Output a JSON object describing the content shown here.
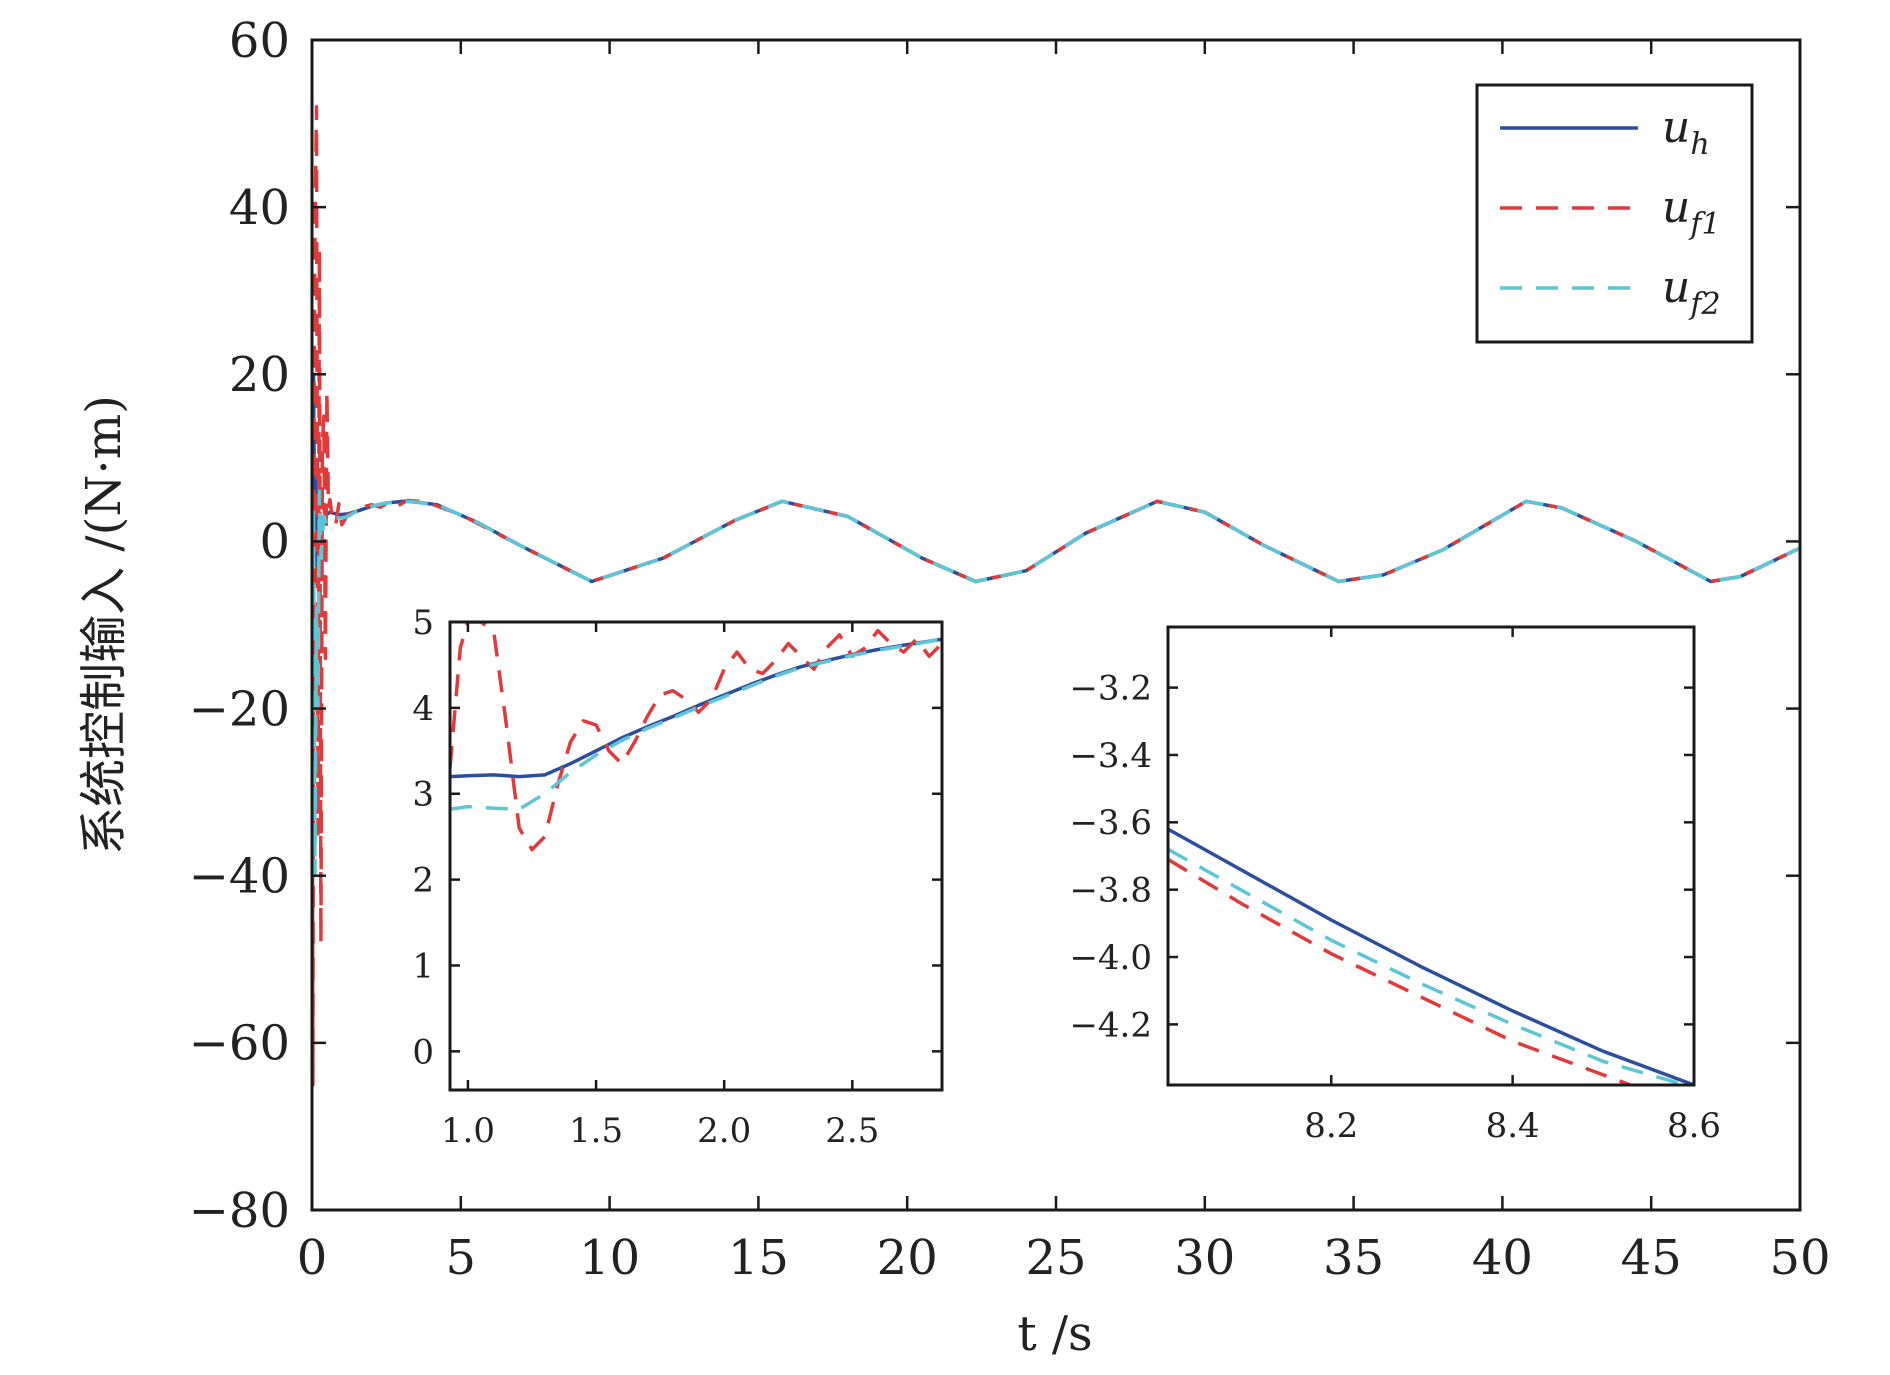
{
  "chart_data": [
    {
      "type": "line",
      "name": "main",
      "title": "",
      "xlabel": "t /s",
      "ylabel": "系统控制输入 /(N·m)",
      "xlim": [
        0,
        50
      ],
      "ylim": [
        -80,
        60
      ],
      "xticks": [
        0,
        5,
        10,
        15,
        20,
        25,
        30,
        35,
        40,
        45,
        50
      ],
      "yticks": [
        -80,
        -60,
        -40,
        -20,
        0,
        20,
        40,
        60
      ],
      "xtick_labels": [
        "0",
        "5",
        "10",
        "15",
        "20",
        "25",
        "30",
        "35",
        "40",
        "45",
        "50"
      ],
      "ytick_labels": [
        "−80",
        "−60",
        "−40",
        "−20",
        "0",
        "20",
        "40",
        "60"
      ],
      "grid": false,
      "legend_position": "top-right",
      "series": [
        {
          "name": "u_h",
          "color": "#2b4f9e",
          "style": "solid",
          "x": [
            0,
            0.05,
            0.1,
            0.15,
            0.25,
            0.4,
            0.6,
            0.9,
            1.2,
            1.5,
            2,
            2.5,
            3.1,
            3.5,
            4.2,
            5.6,
            7.0,
            9.4,
            11.8,
            14.2,
            15.8,
            18.0,
            20.5,
            22.3,
            24.0,
            26.0,
            28.4,
            30.0,
            32.0,
            34.5,
            36.0,
            38.0,
            40.8,
            42.0,
            44.5,
            47.0,
            48.0,
            50.0
          ],
          "y": [
            0,
            20,
            -5,
            8,
            2,
            3,
            3.5,
            3.2,
            3.3,
            3.6,
            4.2,
            4.6,
            4.8,
            4.7,
            4.4,
            2.2,
            -0.5,
            -4.8,
            -2.0,
            2.5,
            4.8,
            3.0,
            -2.0,
            -4.8,
            -3.5,
            1.0,
            4.8,
            3.5,
            -0.5,
            -4.8,
            -4.0,
            -1.0,
            4.8,
            4.0,
            0.0,
            -4.8,
            -4.2,
            -0.8
          ]
        },
        {
          "name": "u_f1",
          "color": "#e03a3a",
          "style": "dashed",
          "x": [
            0,
            0.03,
            0.06,
            0.1,
            0.15,
            0.2,
            0.25,
            0.3,
            0.35,
            0.4,
            0.45,
            0.5,
            0.55,
            0.6,
            0.7,
            0.8,
            0.9,
            1.0,
            1.2,
            1.4,
            1.6,
            1.8,
            2.0,
            2.3,
            2.6,
            2.9,
            3.2,
            3.6,
            4.0,
            5.0,
            7.0,
            9.4,
            11.8,
            14.2,
            15.8,
            18.0,
            20.5,
            22.3,
            24.0,
            26.0,
            28.4,
            30.0,
            32.0,
            34.5,
            36.0,
            38.0,
            40.8,
            42.0,
            44.5,
            47.0,
            48.0,
            50.0
          ],
          "y": [
            0,
            -65,
            10,
            38,
            52,
            -35,
            35,
            -48,
            12,
            15,
            -14,
            18,
            4,
            5,
            2.5,
            2.0,
            4.5,
            2.0,
            3.2,
            3.4,
            3.8,
            4.2,
            4.4,
            4.1,
            4.7,
            4.3,
            4.9,
            4.8,
            4.5,
            3.2,
            -0.5,
            -4.8,
            -2.0,
            2.5,
            4.8,
            3.0,
            -2.0,
            -4.8,
            -3.5,
            1.0,
            4.8,
            3.5,
            -0.5,
            -4.8,
            -4.0,
            -1.0,
            4.8,
            4.0,
            0.0,
            -4.8,
            -4.2,
            -0.8
          ]
        },
        {
          "name": "u_f2",
          "color": "#5cc6d6",
          "style": "dashed",
          "x": [
            0,
            0.05,
            0.1,
            0.15,
            0.2,
            0.25,
            0.3,
            0.4,
            0.5,
            0.6,
            0.8,
            1.0,
            1.2,
            1.5,
            2.0,
            2.5,
            3.1,
            3.5,
            4.2,
            5.6,
            7.0,
            9.4,
            11.8,
            14.2,
            15.8,
            18.0,
            20.5,
            22.3,
            24.0,
            26.0,
            28.4,
            30.0,
            32.0,
            34.5,
            36.0,
            38.0,
            40.8,
            42.0,
            44.5,
            47.0,
            48.0,
            50.0
          ],
          "y": [
            0,
            4,
            -40,
            -8,
            -20,
            6,
            -2,
            3,
            2,
            2.5,
            2.8,
            2.8,
            3.0,
            3.6,
            4.2,
            4.6,
            4.8,
            4.7,
            4.4,
            2.2,
            -0.5,
            -4.8,
            -2.0,
            2.5,
            4.8,
            3.0,
            -2.0,
            -4.8,
            -3.5,
            1.0,
            4.8,
            3.5,
            -0.5,
            -4.8,
            -4.0,
            -1.0,
            4.8,
            4.0,
            0.0,
            -4.8,
            -4.2,
            -0.8
          ]
        }
      ]
    },
    {
      "type": "line",
      "name": "inset-left",
      "title": "",
      "xlim": [
        0.93,
        2.85
      ],
      "ylim": [
        -0.45,
        5.0
      ],
      "xticks": [
        1.0,
        1.5,
        2.0,
        2.5
      ],
      "yticks": [
        0,
        1,
        2,
        3,
        4,
        5
      ],
      "xtick_labels": [
        "1.0",
        "1.5",
        "2.0",
        "2.5"
      ],
      "ytick_labels": [
        "0",
        "1",
        "2",
        "3",
        "4",
        "5"
      ],
      "grid": false,
      "series": [
        {
          "name": "u_h",
          "color": "#2b4f9e",
          "style": "solid",
          "x": [
            0.93,
            1.0,
            1.1,
            1.2,
            1.3,
            1.4,
            1.5,
            1.6,
            1.7,
            1.8,
            1.9,
            2.0,
            2.1,
            2.2,
            2.3,
            2.4,
            2.5,
            2.6,
            2.7,
            2.85
          ],
          "y": [
            3.2,
            3.21,
            3.22,
            3.2,
            3.22,
            3.35,
            3.5,
            3.65,
            3.78,
            3.9,
            4.03,
            4.15,
            4.27,
            4.38,
            4.48,
            4.55,
            4.62,
            4.68,
            4.73,
            4.8
          ]
        },
        {
          "name": "u_f1",
          "color": "#e03a3a",
          "style": "dashed",
          "x": [
            0.93,
            0.97,
            1.0,
            1.05,
            1.1,
            1.15,
            1.2,
            1.25,
            1.3,
            1.35,
            1.4,
            1.45,
            1.5,
            1.55,
            1.6,
            1.65,
            1.7,
            1.75,
            1.8,
            1.85,
            1.9,
            1.95,
            2.0,
            2.05,
            2.1,
            2.15,
            2.2,
            2.25,
            2.3,
            2.35,
            2.4,
            2.45,
            2.5,
            2.55,
            2.6,
            2.65,
            2.7,
            2.75,
            2.8,
            2.85
          ],
          "y": [
            3.3,
            4.7,
            5.0,
            5.0,
            4.9,
            3.8,
            2.6,
            2.35,
            2.5,
            3.1,
            3.6,
            3.85,
            3.8,
            3.5,
            3.35,
            3.6,
            3.9,
            4.15,
            4.2,
            4.1,
            3.95,
            4.1,
            4.45,
            4.65,
            4.45,
            4.4,
            4.55,
            4.75,
            4.6,
            4.45,
            4.7,
            4.85,
            4.6,
            4.7,
            4.9,
            4.75,
            4.65,
            4.8,
            4.6,
            4.75
          ]
        },
        {
          "name": "u_f2",
          "color": "#5cc6d6",
          "style": "dashed",
          "x": [
            0.93,
            1.0,
            1.1,
            1.2,
            1.3,
            1.4,
            1.5,
            1.6,
            1.7,
            1.8,
            1.9,
            2.0,
            2.1,
            2.2,
            2.3,
            2.4,
            2.5,
            2.6,
            2.7,
            2.85
          ],
          "y": [
            2.82,
            2.85,
            2.83,
            2.82,
            3.0,
            3.25,
            3.45,
            3.62,
            3.76,
            3.88,
            4.01,
            4.13,
            4.25,
            4.37,
            4.47,
            4.54,
            4.61,
            4.67,
            4.72,
            4.8
          ]
        }
      ]
    },
    {
      "type": "line",
      "name": "inset-right",
      "title": "",
      "xlim": [
        8.02,
        8.6
      ],
      "ylim": [
        -4.38,
        -3.02
      ],
      "xticks": [
        8.2,
        8.4,
        8.6
      ],
      "yticks": [
        -4.2,
        -4.0,
        -3.8,
        -3.6,
        -3.4,
        -3.2
      ],
      "xtick_labels": [
        "8.2",
        "8.4",
        "8.6"
      ],
      "ytick_labels": [
        "−4.2",
        "−4.0",
        "−3.8",
        "−3.6",
        "−3.4",
        "−3.2"
      ],
      "grid": false,
      "series": [
        {
          "name": "u_h",
          "color": "#2b4f9e",
          "style": "solid",
          "x": [
            8.02,
            8.1,
            8.2,
            8.3,
            8.4,
            8.5,
            8.6
          ],
          "y": [
            -3.62,
            -3.74,
            -3.89,
            -4.03,
            -4.16,
            -4.28,
            -4.38
          ]
        },
        {
          "name": "u_f1",
          "color": "#e03a3a",
          "style": "dashed",
          "x": [
            8.02,
            8.1,
            8.2,
            8.3,
            8.4,
            8.5,
            8.53
          ],
          "y": [
            -3.71,
            -3.84,
            -3.99,
            -4.12,
            -4.25,
            -4.35,
            -4.38
          ]
        },
        {
          "name": "u_f2",
          "color": "#5cc6d6",
          "style": "dashed",
          "x": [
            8.02,
            8.1,
            8.2,
            8.3,
            8.4,
            8.5,
            8.59
          ],
          "y": [
            -3.68,
            -3.8,
            -3.95,
            -4.08,
            -4.2,
            -4.31,
            -4.38
          ]
        }
      ]
    }
  ],
  "legend": {
    "entries": [
      {
        "label": "u",
        "sub": "h"
      },
      {
        "label": "u",
        "sub": "f1"
      },
      {
        "label": "u",
        "sub": "f2"
      }
    ]
  },
  "colors": {
    "u_h": "#2b4f9e",
    "u_f1": "#e03a3a",
    "u_f2": "#5cc6d6",
    "axes": "#1a1a1a"
  }
}
